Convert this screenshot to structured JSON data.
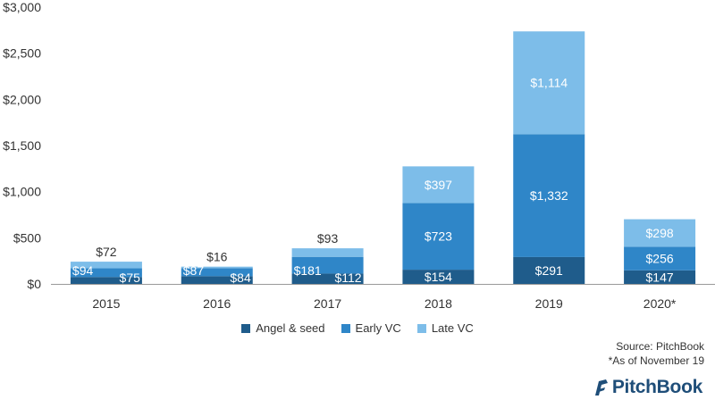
{
  "chart_data": {
    "type": "bar",
    "stacked": true,
    "categories": [
      "2015",
      "2016",
      "2017",
      "2018",
      "2019",
      "2020*"
    ],
    "series": [
      {
        "name": "Angel & seed",
        "color": "#1f5c8b",
        "values": [
          75,
          84,
          112,
          154,
          291,
          147
        ],
        "labels": [
          "$75",
          "$84",
          "$112",
          "$154",
          "$291",
          "$147"
        ]
      },
      {
        "name": "Early VC",
        "color": "#2f86c8",
        "values": [
          94,
          87,
          181,
          723,
          1332,
          256
        ],
        "labels": [
          "$94",
          "$87",
          "$181",
          "$723",
          "$1,332",
          "$256"
        ]
      },
      {
        "name": "Late VC",
        "color": "#7dbde9",
        "values": [
          72,
          16,
          93,
          397,
          1114,
          298
        ],
        "labels": [
          "$72",
          "$16",
          "$93",
          "$397",
          "$1,114",
          "$298"
        ]
      }
    ],
    "ylim": [
      0,
      3000
    ],
    "yticks": [
      0,
      500,
      1000,
      1500,
      2000,
      2500,
      3000
    ],
    "ytick_labels": [
      "$0",
      "$500",
      "$1,000",
      "$1,500",
      "$2,000",
      "$2,500",
      "$3,000"
    ],
    "grid": false,
    "legend_position": "bottom"
  },
  "notes": {
    "source": "Source: PitchBook",
    "asof": "*As of November 19"
  },
  "brand": {
    "name": "PitchBook",
    "color": "#1f4e79"
  }
}
